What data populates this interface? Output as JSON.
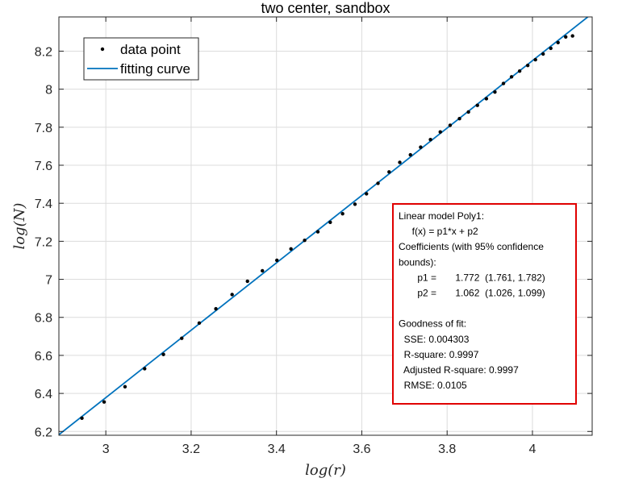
{
  "chart_data": {
    "type": "scatter",
    "title": "two center, sandbox",
    "xlabel": "log(r)",
    "ylabel": "log(N)",
    "xlim": [
      2.89,
      4.14
    ],
    "ylim": [
      6.18,
      8.38
    ],
    "xticks": [
      3,
      3.2,
      3.4,
      3.6,
      3.8,
      4
    ],
    "xtick_labels": [
      "3",
      "3.2",
      "3.4",
      "3.6",
      "3.8",
      "4"
    ],
    "yticks": [
      6.2,
      6.4,
      6.6,
      6.8,
      7,
      7.2,
      7.4,
      7.6,
      7.8,
      8,
      8.2
    ],
    "ytick_labels": [
      "6.2",
      "6.4",
      "6.6",
      "6.8",
      "7",
      "7.2",
      "7.4",
      "7.6",
      "7.8",
      "8",
      "8.2"
    ],
    "grid": true,
    "legend_position": "top-left",
    "series": [
      {
        "name": "data point",
        "kind": "scatter",
        "color": "#000000",
        "x": [
          2.944,
          2.996,
          3.045,
          3.091,
          3.135,
          3.178,
          3.219,
          3.258,
          3.296,
          3.332,
          3.367,
          3.401,
          3.434,
          3.466,
          3.497,
          3.526,
          3.555,
          3.584,
          3.611,
          3.638,
          3.664,
          3.689,
          3.714,
          3.738,
          3.761,
          3.784,
          3.807,
          3.829,
          3.85,
          3.871,
          3.892,
          3.912,
          3.932,
          3.951,
          3.97,
          3.989,
          4.007,
          4.025,
          4.043,
          4.06,
          4.078,
          4.094
        ],
        "y": [
          6.27,
          6.355,
          6.435,
          6.53,
          6.605,
          6.69,
          6.77,
          6.845,
          6.92,
          6.99,
          7.045,
          7.1,
          7.16,
          7.205,
          7.25,
          7.3,
          7.345,
          7.395,
          7.45,
          7.505,
          7.565,
          7.615,
          7.655,
          7.695,
          7.735,
          7.775,
          7.81,
          7.845,
          7.88,
          7.915,
          7.95,
          7.985,
          8.03,
          8.065,
          8.095,
          8.125,
          8.155,
          8.185,
          8.215,
          8.245,
          8.275,
          8.28
        ]
      },
      {
        "name": "fitting curve",
        "kind": "line",
        "color": "#0072BD",
        "slope": 1.772,
        "intercept": 1.062
      }
    ],
    "annotation": {
      "border_color": "#e00000",
      "lines": [
        "Linear model Poly1:",
        "     f(x) = p1*x + p2",
        "Coefficients (with 95% confidence",
        "bounds):",
        "       p1 =       1.772  (1.761, 1.782)",
        "       p2 =       1.062  (1.026, 1.099)",
        "",
        "Goodness of fit:",
        "  SSE: 0.004303",
        "  R-square: 0.9997",
        "  Adjusted R-square: 0.9997",
        "  RMSE: 0.0105"
      ]
    }
  }
}
